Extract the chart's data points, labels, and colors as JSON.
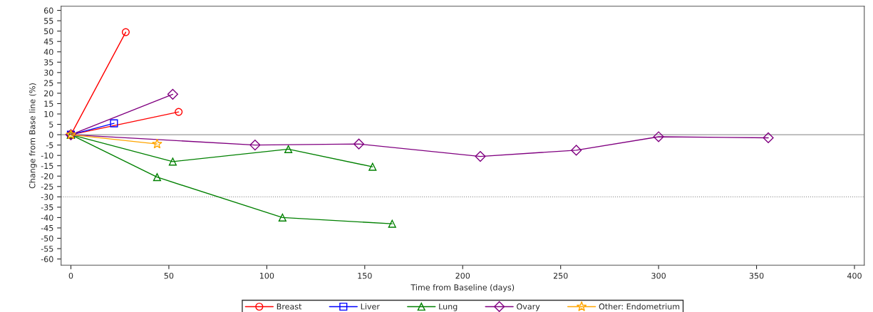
{
  "chart_data": {
    "type": "line",
    "xlabel": "Time from Baseline (days)",
    "ylabel": "Change from Base line (%)",
    "xlim": [
      -5,
      405
    ],
    "xticks": [
      0,
      50,
      100,
      150,
      200,
      250,
      300,
      350,
      400
    ],
    "ylim": [
      -63,
      62
    ],
    "yticks": [
      60,
      55,
      50,
      45,
      40,
      35,
      30,
      25,
      20,
      15,
      10,
      5,
      0,
      -5,
      -10,
      -15,
      -20,
      -25,
      -30,
      -35,
      -40,
      -45,
      -50,
      -55,
      -60
    ],
    "grid": false,
    "legend": "bottom",
    "ref_lines": [
      {
        "axis": "y",
        "value": 0,
        "color": "#999999",
        "line_style": "solid"
      },
      {
        "axis": "y",
        "value": -30,
        "color": "#999999",
        "line_style": "dotted"
      }
    ],
    "series": [
      {
        "name": "Breast",
        "color": "#ff0000",
        "marker": "circle",
        "x": [
          0,
          28
        ],
        "values": [
          0,
          49.5
        ]
      },
      {
        "color": "#ff0000",
        "marker": "circle",
        "x": [
          0,
          55
        ],
        "values": [
          0,
          11
        ]
      },
      {
        "name": "Liver",
        "color": "#0000ff",
        "marker": "square",
        "x": [
          0,
          22
        ],
        "values": [
          0,
          5.5
        ]
      },
      {
        "name": "Lung",
        "color": "#008000",
        "marker": "triangle",
        "x": [
          0,
          52,
          111,
          154
        ],
        "values": [
          0,
          -13,
          -7,
          -15.5
        ]
      },
      {
        "color": "#008000",
        "marker": "triangle",
        "x": [
          0,
          44,
          108,
          164
        ],
        "values": [
          0,
          -20.5,
          -40,
          -43
        ]
      },
      {
        "name": "Ovary",
        "color": "#800080",
        "marker": "diamond",
        "x": [
          0,
          52
        ],
        "values": [
          0,
          19.5
        ]
      },
      {
        "color": "#800080",
        "marker": "diamond",
        "x": [
          0,
          94,
          147,
          209,
          258,
          300,
          356
        ],
        "values": [
          0,
          -5,
          -4.5,
          -10.5,
          -7.5,
          -1,
          -1.5
        ]
      },
      {
        "name": "Other: Endometrium",
        "color": "#ffa500",
        "marker": "star",
        "x": [
          0,
          44
        ],
        "values": [
          0,
          -4.5
        ]
      }
    ]
  }
}
